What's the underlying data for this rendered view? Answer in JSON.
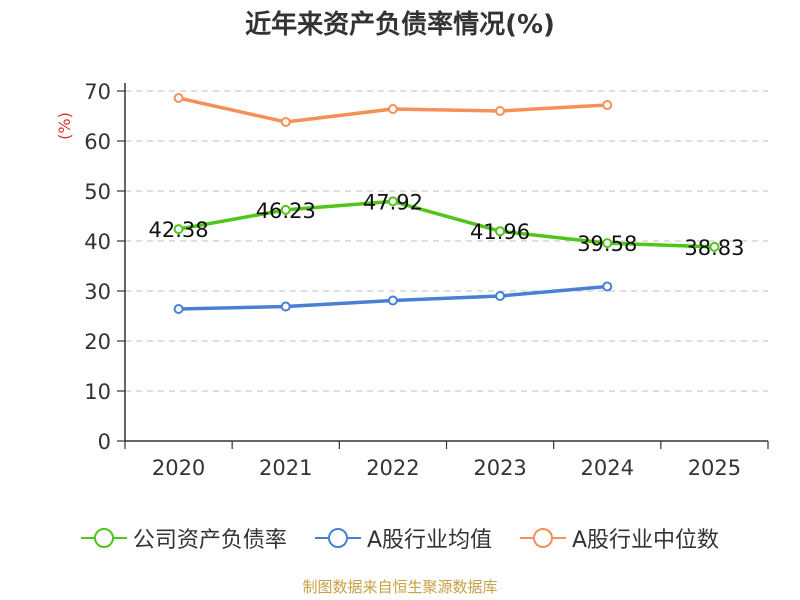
{
  "title": "近年来资产负债率情况(%)",
  "source": "制图数据来自恒生聚源数据库",
  "chart_data": {
    "type": "line",
    "title": "近年来资产负债率情况(%)",
    "ylabel": "(%)",
    "xlabel": "",
    "categories": [
      "2020",
      "2021",
      "2022",
      "2023",
      "2024",
      "2025"
    ],
    "ylim": [
      0,
      70
    ],
    "yticks": [
      0,
      10,
      20,
      30,
      40,
      50,
      60,
      70
    ],
    "grid": "horizontal dashed",
    "legend_position": "bottom",
    "series": [
      {
        "name": "公司资产负债率",
        "color": "#52c41a",
        "values": [
          42.38,
          46.23,
          47.92,
          41.96,
          39.58,
          38.83
        ],
        "labels": [
          "42.38",
          "46.23",
          "47.92",
          "41.96",
          "39.58",
          "38.83"
        ]
      },
      {
        "name": "A股行业均值",
        "color": "#4a7fd6",
        "values": [
          26.4,
          26.9,
          28.1,
          29.0,
          30.9,
          null
        ]
      },
      {
        "name": "A股行业中位数",
        "color": "#f5905a",
        "values": [
          68.6,
          63.8,
          66.4,
          66.0,
          67.2,
          null
        ]
      }
    ]
  }
}
